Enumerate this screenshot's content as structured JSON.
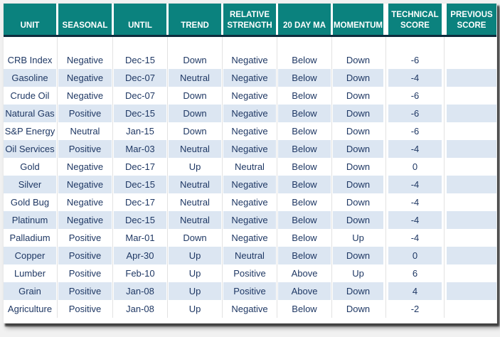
{
  "colors": {
    "header_bg": "#0b827e",
    "header_text": "#ffffff",
    "header_divider": "#0d2c3d",
    "row_stripe": "#dce6f2",
    "row_plain": "#ffffff",
    "cell_text": "#1f3864",
    "page_bg": "#f1f1f1",
    "frame_shadow": "#3f3f3f"
  },
  "chart_data": {
    "type": "table",
    "title": "",
    "columns": [
      "UNIT",
      "SEASONAL",
      "UNTIL",
      "TREND",
      "RELATIVE STRENGTH",
      "20 DAY MA",
      "MOMENTUM",
      "TECHNICAL SCORE",
      "PREVIOUS SCORE"
    ],
    "rows": [
      [
        "CRB Index",
        "Negative",
        "Dec-15",
        "Down",
        "Negative",
        "Below",
        "Down",
        "-6",
        ""
      ],
      [
        "Gasoline",
        "Negative",
        "Dec-07",
        "Neutral",
        "Negative",
        "Below",
        "Down",
        "-4",
        ""
      ],
      [
        "Crude Oil",
        "Negative",
        "Dec-07",
        "Down",
        "Negative",
        "Below",
        "Down",
        "-6",
        ""
      ],
      [
        "Natural Gas",
        "Positive",
        "Dec-15",
        "Down",
        "Negative",
        "Below",
        "Down",
        "-6",
        ""
      ],
      [
        "S&P Energy",
        "Neutral",
        "Jan-15",
        "Down",
        "Negative",
        "Below",
        "Down",
        "-6",
        ""
      ],
      [
        "Oil Services",
        "Positive",
        "Mar-03",
        "Neutral",
        "Negative",
        "Below",
        "Down",
        "-4",
        ""
      ],
      [
        "Gold",
        "Negative",
        "Dec-17",
        "Up",
        "Neutral",
        "Below",
        "Down",
        "0",
        ""
      ],
      [
        "Silver",
        "Negative",
        "Dec-15",
        "Neutral",
        "Negative",
        "Below",
        "Down",
        "-4",
        ""
      ],
      [
        "Gold Bug",
        "Negative",
        "Dec-17",
        "Neutral",
        "Negative",
        "Below",
        "Down",
        "-4",
        ""
      ],
      [
        "Platinum",
        "Negative",
        "Dec-15",
        "Neutral",
        "Negative",
        "Below",
        "Down",
        "-4",
        ""
      ],
      [
        "Palladium",
        "Positive",
        "Mar-01",
        "Down",
        "Negative",
        "Below",
        "Up",
        "-4",
        ""
      ],
      [
        "Copper",
        "Positive",
        "Apr-30",
        "Up",
        "Neutral",
        "Below",
        "Down",
        "0",
        ""
      ],
      [
        "Lumber",
        "Positive",
        "Feb-10",
        "Up",
        "Positive",
        "Above",
        "Up",
        "6",
        ""
      ],
      [
        "Grain",
        "Positive",
        "Jan-08",
        "Up",
        "Positive",
        "Above",
        "Down",
        "4",
        ""
      ],
      [
        "Agriculture",
        "Positive",
        "Jan-08",
        "Up",
        "Negative",
        "Below",
        "Down",
        "-2",
        ""
      ]
    ]
  }
}
